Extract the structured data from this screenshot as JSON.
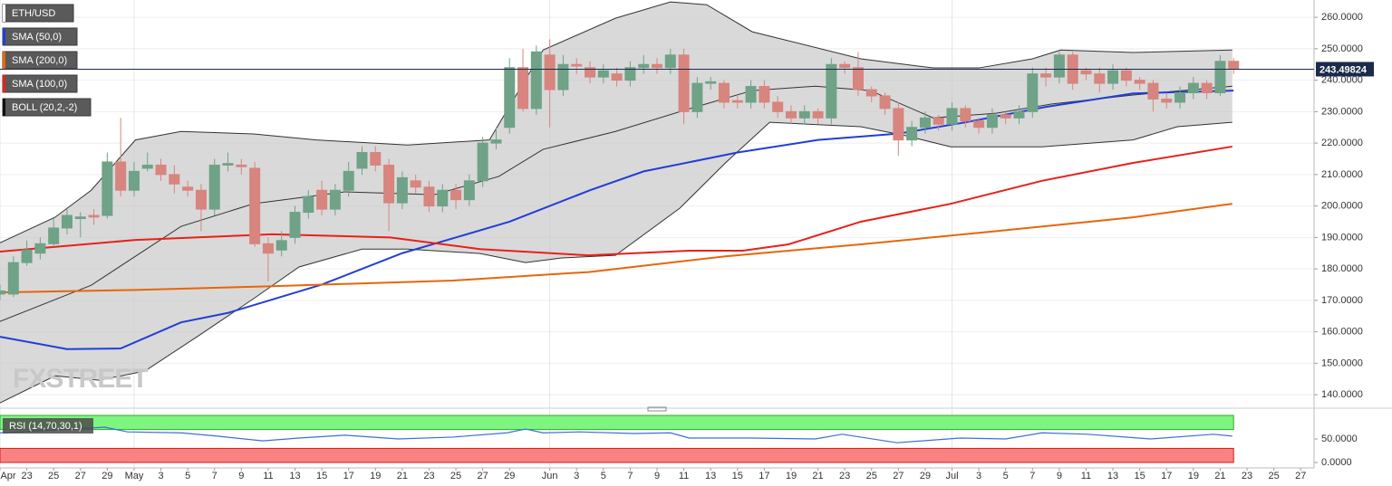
{
  "chart_data": [
    {
      "type": "candlestick",
      "title": "ETH/USD",
      "watermark": "FXSTREET",
      "grid": true,
      "up_color": "#6fa287",
      "down_color": "#d7857e",
      "x": [
        0,
        1,
        2,
        3,
        4,
        5,
        6,
        7,
        8,
        9,
        10,
        11,
        12,
        13,
        14,
        15,
        16,
        17,
        18,
        19,
        20,
        21,
        22,
        23,
        24,
        25,
        26,
        27,
        28,
        29,
        30,
        31,
        32,
        33,
        34,
        35,
        36,
        37,
        38,
        39,
        40,
        41,
        42,
        43,
        44,
        45,
        46,
        47,
        48,
        49,
        50,
        51,
        52,
        53,
        54,
        55,
        56,
        57,
        58,
        59,
        60,
        61,
        62,
        63,
        64,
        65,
        66,
        67,
        68,
        69,
        70,
        71,
        72,
        73,
        74,
        75,
        76,
        77,
        78,
        79,
        80,
        81,
        82,
        83,
        84,
        85,
        86,
        87,
        88,
        89,
        90,
        91,
        92
      ],
      "open": [
        172,
        172,
        182,
        185,
        188,
        193,
        196,
        197,
        197,
        214,
        205,
        212,
        213,
        210,
        206,
        205,
        199,
        213,
        213,
        212,
        188,
        186,
        190,
        198,
        205,
        199,
        205,
        212,
        217,
        213,
        201,
        208,
        206,
        200,
        205,
        202,
        208,
        220,
        225,
        244,
        231,
        248,
        237,
        245,
        244,
        241,
        242,
        240,
        244,
        245,
        244,
        248,
        230,
        239,
        239,
        233.5,
        233,
        238,
        233,
        230,
        228,
        230,
        228,
        245,
        244,
        237,
        235,
        231,
        221,
        225,
        228,
        226,
        231,
        227,
        225,
        229,
        228,
        230,
        242,
        241,
        248,
        243,
        242,
        239,
        243,
        240,
        239,
        234,
        233,
        236,
        239,
        236,
        246
      ],
      "high": [
        175,
        184,
        189,
        190,
        196,
        199,
        198,
        199,
        217,
        228,
        214,
        217,
        215,
        213,
        208,
        207,
        215,
        217,
        215,
        214,
        190,
        192,
        200,
        205,
        208,
        207,
        214,
        219,
        219,
        215,
        211,
        210,
        208,
        207,
        207,
        210,
        222,
        225,
        247,
        250,
        251,
        253,
        248,
        247,
        246,
        245,
        244,
        246,
        248,
        247,
        250,
        250,
        241,
        241,
        240,
        235,
        240,
        240,
        235,
        232,
        232,
        231,
        247,
        246,
        249,
        238,
        236,
        233,
        227,
        230,
        229,
        233,
        232,
        228,
        231,
        230,
        232,
        244,
        244,
        249,
        249,
        244,
        244,
        245,
        244,
        241,
        240,
        236,
        238,
        241,
        240,
        248,
        247
      ],
      "low": [
        170,
        171,
        181,
        183,
        187,
        191,
        190,
        194,
        196,
        203,
        203,
        211,
        208,
        204,
        203,
        192,
        197,
        211,
        210,
        187,
        176,
        184,
        188,
        196,
        197,
        197,
        203,
        210,
        211,
        192,
        199,
        204,
        198,
        198,
        199,
        200,
        206,
        218,
        223,
        230,
        229,
        225,
        235,
        242,
        239,
        239,
        238,
        238,
        242,
        242,
        242,
        226,
        228,
        237,
        231,
        231,
        231,
        231,
        228,
        226,
        226,
        226,
        226,
        242,
        235,
        233,
        229,
        216,
        219,
        223,
        224,
        224,
        225,
        223,
        223,
        226,
        226,
        228,
        238,
        239,
        237,
        240,
        236,
        237,
        238,
        237,
        230,
        231,
        231,
        234,
        234,
        235,
        242
      ],
      "close": [
        173,
        182,
        186,
        188,
        193,
        197,
        196.5,
        196.5,
        214,
        205,
        211,
        213,
        210,
        207,
        205,
        199,
        213,
        213.5,
        212.5,
        188,
        185,
        189,
        198,
        203,
        199,
        205,
        211,
        217,
        213,
        201,
        209,
        206,
        200,
        205,
        202,
        208,
        220,
        221,
        244,
        231,
        249,
        237,
        245,
        244.5,
        241,
        243,
        240,
        244,
        245,
        244,
        248,
        230,
        239,
        239.5,
        233,
        233,
        238,
        233,
        230,
        228,
        230,
        228,
        245,
        244,
        237,
        235,
        231,
        221,
        225,
        228,
        226,
        231,
        227,
        225,
        229,
        228,
        230,
        242,
        241,
        248,
        239,
        242,
        239,
        243,
        240,
        239,
        234,
        233,
        236,
        239,
        236,
        246,
        243.49824
      ],
      "last_price": 243.49824,
      "last_price_color": "#1b2a4a",
      "indicators": [
        {
          "name": "SMA (50,0)",
          "color": "#1f3fd6",
          "x": [
            0,
            5,
            9,
            13.5,
            17,
            24,
            30,
            38,
            44,
            48,
            55,
            61,
            67,
            72,
            78,
            84.5,
            92
          ],
          "values": [
            158.4,
            154.5,
            154.7,
            163,
            166,
            175,
            185,
            195,
            205,
            211,
            217,
            221,
            223,
            226.6,
            231.5,
            235.8,
            236.7
          ]
        },
        {
          "name": "SMA (200,0)",
          "color": "#e8650a",
          "x": [
            0,
            10.1,
            20.3,
            33.8,
            43.9,
            54.1,
            64.2,
            74.3,
            84.5,
            91.9
          ],
          "values": [
            172.5,
            173.3,
            174.5,
            176.3,
            179,
            184,
            187.8,
            192,
            196.4,
            200.7
          ]
        },
        {
          "name": "SMA (100,0)",
          "color": "#e8201a",
          "x": [
            0,
            10.1,
            20.3,
            29.1,
            35.8,
            43.9,
            51.4,
            55.4,
            58.8,
            64.2,
            70.9,
            77.7,
            84.5,
            91.9
          ],
          "values": [
            185.5,
            189.2,
            191,
            190,
            186.3,
            184.3,
            185.8,
            185.8,
            187.8,
            195,
            200.7,
            208,
            213.7,
            218.9
          ]
        }
      ],
      "bollinger": {
        "name": "BOLL (20,2,-2)",
        "color": "#333333",
        "fill": "#c9c9c9",
        "upper": {
          "x": [
            0,
            4.1,
            6.8,
            10.1,
            13.5,
            18.9,
            23.6,
            30.4,
            36.5,
            40.5,
            45.9,
            50,
            52.7,
            56.1,
            64.2,
            69.6,
            73,
            77,
            79.1,
            84.5,
            91.9
          ],
          "values": [
            188.3,
            196.4,
            205,
            221,
            223.7,
            222.9,
            221,
            219.4,
            221,
            249.6,
            259.7,
            264.9,
            264,
            255.4,
            246.8,
            243.9,
            243.9,
            246.8,
            249.6,
            248.8,
            249.6
          ]
        },
        "middle": {
          "x": [
            0,
            6.8,
            13.5,
            18.9,
            25.7,
            32.4,
            37.2,
            40.5,
            45.9,
            51.4,
            56.1,
            60.8,
            64.9,
            69.6,
            74.3,
            78.4,
            84.5,
            91.9
          ],
          "values": [
            163.3,
            174.8,
            193.5,
            200.7,
            204.5,
            203.6,
            209.4,
            218,
            223.7,
            230.9,
            236.7,
            238.1,
            236.7,
            228,
            229.5,
            232.4,
            235.3,
            238.1
          ]
        },
        "lower": {
          "x": [
            0,
            4.1,
            7.4,
            10.8,
            14.9,
            18.9,
            22.3,
            27,
            30.4,
            35.8,
            39.2,
            41.9,
            45.9,
            50.7,
            54.1,
            57.4,
            64.2,
            67.6,
            70.9,
            77.7,
            84.5,
            87.8,
            91.9
          ],
          "values": [
            137.4,
            146,
            144.6,
            147.5,
            159,
            170.5,
            180.6,
            186.3,
            186.3,
            184.9,
            182,
            183.5,
            184.3,
            199.3,
            213.7,
            226.6,
            225.2,
            222.3,
            218.8,
            218.8,
            221,
            225.2,
            226.6
          ]
        }
      },
      "ylim": [
        136,
        265.5
      ],
      "yticks": [
        {
          "value": 140,
          "label": "140.0000"
        },
        {
          "value": 150,
          "label": "150.0000"
        },
        {
          "value": 160,
          "label": "160.0000"
        },
        {
          "value": 170,
          "label": "170.0000"
        },
        {
          "value": 180,
          "label": "180.0000"
        },
        {
          "value": 190,
          "label": "190.0000"
        },
        {
          "value": 200,
          "label": "200.0000"
        },
        {
          "value": 210,
          "label": "210.0000"
        },
        {
          "value": 220,
          "label": "220.0000"
        },
        {
          "value": 230,
          "label": "230.0000"
        },
        {
          "value": 240,
          "label": "240.0000"
        },
        {
          "value": 250,
          "label": "250.0000"
        },
        {
          "value": 260,
          "label": "260.0000"
        }
      ],
      "xlim": [
        0,
        98
      ],
      "xticks": [
        {
          "value": 0,
          "label": "Apr"
        },
        {
          "value": 2,
          "label": "23"
        },
        {
          "value": 4,
          "label": "25"
        },
        {
          "value": 6,
          "label": "27"
        },
        {
          "value": 8,
          "label": "29"
        },
        {
          "value": 10,
          "label": "May"
        },
        {
          "value": 12,
          "label": "3"
        },
        {
          "value": 14,
          "label": "5"
        },
        {
          "value": 16,
          "label": "7"
        },
        {
          "value": 18,
          "label": "9"
        },
        {
          "value": 20,
          "label": "11"
        },
        {
          "value": 22,
          "label": "13"
        },
        {
          "value": 24,
          "label": "15"
        },
        {
          "value": 26,
          "label": "17"
        },
        {
          "value": 28,
          "label": "19"
        },
        {
          "value": 30,
          "label": "21"
        },
        {
          "value": 32,
          "label": "23"
        },
        {
          "value": 34,
          "label": "25"
        },
        {
          "value": 36,
          "label": "27"
        },
        {
          "value": 38,
          "label": "29"
        },
        {
          "value": 41,
          "label": "Jun"
        },
        {
          "value": 43,
          "label": "3"
        },
        {
          "value": 45,
          "label": "5"
        },
        {
          "value": 47,
          "label": "7"
        },
        {
          "value": 49,
          "label": "9"
        },
        {
          "value": 51,
          "label": "11"
        },
        {
          "value": 53,
          "label": "13"
        },
        {
          "value": 55,
          "label": "15"
        },
        {
          "value": 57,
          "label": "17"
        },
        {
          "value": 59,
          "label": "19"
        },
        {
          "value": 61,
          "label": "21"
        },
        {
          "value": 63,
          "label": "23"
        },
        {
          "value": 65,
          "label": "25"
        },
        {
          "value": 67,
          "label": "27"
        },
        {
          "value": 69,
          "label": "29"
        },
        {
          "value": 71,
          "label": "Jul"
        },
        {
          "value": 73,
          "label": "3"
        },
        {
          "value": 75,
          "label": "5"
        },
        {
          "value": 77,
          "label": "7"
        },
        {
          "value": 79,
          "label": "9"
        },
        {
          "value": 81,
          "label": "11"
        },
        {
          "value": 83,
          "label": "13"
        },
        {
          "value": 85,
          "label": "15"
        },
        {
          "value": 87,
          "label": "17"
        },
        {
          "value": 89,
          "label": "19"
        },
        {
          "value": 91,
          "label": "21"
        },
        {
          "value": 93,
          "label": "23"
        },
        {
          "value": 95,
          "label": "25"
        },
        {
          "value": 97,
          "label": "27"
        }
      ],
      "month_grid": [
        0,
        10,
        41,
        71
      ]
    },
    {
      "type": "line",
      "title": "RSI (14,70,30,1)",
      "series": [
        {
          "color": "#3b6fd8",
          "x": [
            0,
            4.1,
            7.8,
            9.5,
            13.5,
            16.2,
            19.6,
            22.3,
            25.7,
            29.7,
            33.8,
            37.8,
            39.2,
            40.5,
            43.2,
            47.3,
            50,
            51.4,
            56.1,
            60.8,
            62.8,
            66.9,
            71.6,
            75,
            77.7,
            81.1,
            85.8,
            90.5,
            91.9
          ],
          "values": [
            63,
            69,
            75,
            65,
            63,
            56,
            46,
            52,
            58,
            50,
            54,
            63,
            71,
            63,
            65,
            61.5,
            63,
            52,
            52,
            50,
            60,
            42,
            52,
            50,
            63,
            60,
            50,
            60,
            56
          ]
        }
      ],
      "bands": [
        {
          "from": 70,
          "to": 100,
          "color": "#7ef57e",
          "stroke": "#2eaa2e"
        },
        {
          "from": 0,
          "to": 30,
          "color": "#fa8282",
          "stroke": "#c22"
        }
      ],
      "ylim": [
        -11.5,
        107.7
      ],
      "yticks": [
        {
          "value": 0,
          "label": "0.0000"
        },
        {
          "value": 50,
          "label": "50.0000"
        }
      ]
    }
  ]
}
